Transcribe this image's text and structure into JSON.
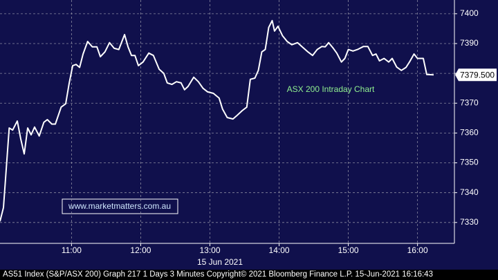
{
  "chart_data": {
    "type": "line",
    "title": "ASX 200 Intraday Chart",
    "watermark": "www.marketmatters.com.au",
    "x_label": "15 Jun 2021",
    "footer": "AS51 Index (S&P/ASX 200) Graph 217 1 Days 3 Minutes Copyright© 2021 Bloomberg Finance L.P. 15-Jun-2021 16:16:43",
    "x": [
      598,
      601,
      606,
      609,
      613,
      616,
      619,
      622,
      625,
      628,
      632,
      636,
      639,
      643,
      646,
      651,
      655,
      658,
      661,
      664,
      667,
      670,
      674,
      678,
      682,
      685,
      689,
      693,
      697,
      701,
      706,
      709,
      712,
      715,
      718,
      722,
      727,
      731,
      736,
      740,
      743,
      747,
      751,
      755,
      758,
      761,
      766,
      770,
      774,
      778,
      783,
      788,
      791,
      795,
      800,
      803,
      808,
      812,
      815,
      819,
      822,
      825,
      828,
      831,
      834,
      836,
      839,
      843,
      847,
      851,
      856,
      860,
      865,
      869,
      873,
      877,
      880,
      883,
      887,
      890,
      894,
      897,
      900,
      904,
      908,
      913,
      917,
      921,
      924,
      927,
      931,
      935,
      938,
      942,
      946,
      950,
      953,
      957,
      960,
      965,
      968,
      974
    ],
    "series": [
      {
        "color": "#ffffff",
        "values": [
          7330.4,
          7335,
          7361.7,
          7361,
          7364,
          7358,
          7353,
          7361.7,
          7359.4,
          7362,
          7359,
          7363.6,
          7364.5,
          7363,
          7363,
          7368.7,
          7369.8,
          7376.8,
          7382.6,
          7383,
          7382,
          7386.5,
          7390.7,
          7388.9,
          7388.9,
          7385.6,
          7387.2,
          7390.3,
          7388.4,
          7388,
          7393,
          7388.9,
          7386,
          7386,
          7382.6,
          7383.8,
          7386.8,
          7386,
          7381.4,
          7380,
          7376.8,
          7376.3,
          7377.2,
          7376.8,
          7374.5,
          7375.6,
          7378.7,
          7377.2,
          7375,
          7373.8,
          7373.3,
          7371.7,
          7368,
          7365.2,
          7364.7,
          7365.7,
          7367.5,
          7368.7,
          7378,
          7378.4,
          7381,
          7387.2,
          7388,
          7395.4,
          7397.7,
          7394.2,
          7395.8,
          7392.6,
          7390.7,
          7389.6,
          7390.3,
          7388.9,
          7387.2,
          7386,
          7388,
          7389,
          7388.9,
          7390.3,
          7388.4,
          7386.8,
          7383.8,
          7385,
          7388,
          7387.5,
          7388,
          7389,
          7389,
          7386,
          7386.5,
          7384.2,
          7385,
          7383.8,
          7385,
          7382.1,
          7381,
          7382,
          7383.8,
          7386.5,
          7385,
          7385,
          7379.6,
          7379.5
        ]
      }
    ],
    "last_value": 7379.5,
    "last_value_label": "7379.500",
    "xlim": [
      598,
      992
    ],
    "xticks": [
      {
        "value": 660,
        "label": "11:00"
      },
      {
        "value": 720,
        "label": "12:00"
      },
      {
        "value": 780,
        "label": "13:00"
      },
      {
        "value": 840,
        "label": "14:00"
      },
      {
        "value": 900,
        "label": "15:00"
      },
      {
        "value": 960,
        "label": "16:00"
      }
    ],
    "ylim": [
      7323,
      7404.6
    ],
    "yticks": [
      7330,
      7340,
      7350,
      7360,
      7370,
      7380,
      7390,
      7400
    ],
    "grid": true
  }
}
